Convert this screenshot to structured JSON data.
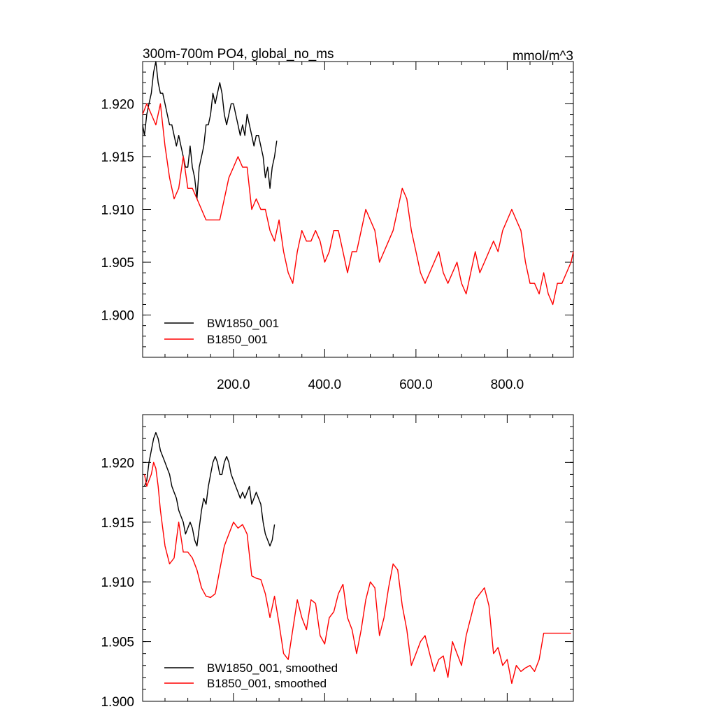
{
  "title_left": "300m-700m PO4, global_no_ms",
  "title_right": "mmol/m^3",
  "chart_data": [
    {
      "type": "line",
      "title": "300m-700m PO4, global_no_ms",
      "units": "mmol/m^3",
      "xlim": [
        1,
        945
      ],
      "ylim": [
        1.896,
        1.924
      ],
      "x_tick_values": [
        200,
        400,
        600,
        800
      ],
      "x_tick_labels": [
        "200.0",
        "400.0",
        "600.0",
        "800.0"
      ],
      "y_tick_values": [
        1.9,
        1.905,
        1.91,
        1.915,
        1.92
      ],
      "y_tick_labels": [
        "1.900",
        "1.905",
        "1.910",
        "1.915",
        "1.920"
      ],
      "legend_position": "bottom-left",
      "series": [
        {
          "name": "BW1850_001",
          "color": "#000000",
          "x": [
            1,
            5,
            10,
            15,
            20,
            25,
            30,
            35,
            40,
            45,
            50,
            55,
            60,
            65,
            70,
            75,
            80,
            85,
            90,
            95,
            100,
            105,
            110,
            115,
            120,
            125,
            130,
            135,
            140,
            145,
            150,
            155,
            160,
            165,
            170,
            175,
            180,
            185,
            190,
            195,
            200,
            205,
            210,
            215,
            220,
            225,
            230,
            235,
            240,
            245,
            250,
            255,
            260,
            265,
            270,
            275,
            280,
            285,
            290,
            295
          ],
          "values": [
            1.918,
            1.917,
            1.919,
            1.92,
            1.921,
            1.923,
            1.924,
            1.922,
            1.921,
            1.921,
            1.92,
            1.919,
            1.918,
            1.918,
            1.917,
            1.916,
            1.917,
            1.916,
            1.915,
            1.914,
            1.914,
            1.916,
            1.914,
            1.913,
            1.911,
            1.914,
            1.915,
            1.916,
            1.918,
            1.918,
            1.919,
            1.921,
            1.92,
            1.921,
            1.922,
            1.921,
            1.919,
            1.918,
            1.919,
            1.92,
            1.92,
            1.919,
            1.918,
            1.917,
            1.918,
            1.917,
            1.919,
            1.918,
            1.917,
            1.916,
            1.917,
            1.917,
            1.916,
            1.915,
            1.913,
            1.914,
            1.912,
            1.914,
            1.915,
            1.9165
          ]
        },
        {
          "name": "B1850_001",
          "color": "#ff0000",
          "x": [
            1,
            10,
            20,
            30,
            40,
            50,
            60,
            70,
            80,
            90,
            100,
            110,
            120,
            130,
            140,
            150,
            160,
            170,
            180,
            190,
            200,
            210,
            220,
            230,
            240,
            250,
            260,
            270,
            280,
            290,
            300,
            310,
            320,
            330,
            340,
            350,
            360,
            370,
            380,
            390,
            400,
            410,
            420,
            430,
            440,
            450,
            460,
            470,
            480,
            490,
            500,
            510,
            520,
            530,
            540,
            550,
            560,
            570,
            580,
            590,
            600,
            610,
            620,
            630,
            640,
            650,
            660,
            670,
            680,
            690,
            700,
            710,
            720,
            730,
            740,
            750,
            760,
            770,
            780,
            790,
            800,
            810,
            820,
            830,
            840,
            850,
            860,
            870,
            880,
            890,
            900,
            910,
            920,
            930,
            940,
            945
          ],
          "values": [
            1.919,
            1.92,
            1.919,
            1.918,
            1.92,
            1.916,
            1.913,
            1.911,
            1.912,
            1.915,
            1.912,
            1.912,
            1.911,
            1.91,
            1.909,
            1.909,
            1.909,
            1.909,
            1.911,
            1.913,
            1.914,
            1.915,
            1.914,
            1.914,
            1.91,
            1.911,
            1.91,
            1.91,
            1.908,
            1.907,
            1.909,
            1.906,
            1.904,
            1.903,
            1.906,
            1.908,
            1.907,
            1.907,
            1.908,
            1.907,
            1.905,
            1.906,
            1.908,
            1.908,
            1.906,
            1.904,
            1.906,
            1.906,
            1.908,
            1.91,
            1.909,
            1.908,
            1.905,
            1.906,
            1.907,
            1.908,
            1.91,
            1.912,
            1.911,
            1.908,
            1.906,
            1.904,
            1.903,
            1.904,
            1.905,
            1.906,
            1.904,
            1.903,
            1.904,
            1.905,
            1.903,
            1.902,
            1.904,
            1.906,
            1.904,
            1.905,
            1.906,
            1.907,
            1.906,
            1.908,
            1.909,
            1.91,
            1.909,
            1.908,
            1.905,
            1.903,
            1.903,
            1.902,
            1.904,
            1.902,
            1.901,
            1.903,
            1.903,
            1.904,
            1.905,
            1.906
          ]
        }
      ]
    },
    {
      "type": "line",
      "xlim": [
        1,
        945
      ],
      "ylim": [
        1.9,
        1.924
      ],
      "x_tick_values": [
        200,
        400,
        600,
        800
      ],
      "x_tick_labels": [],
      "y_tick_values": [
        1.9,
        1.905,
        1.91,
        1.915,
        1.92
      ],
      "y_tick_labels": [
        "1.900",
        "1.905",
        "1.910",
        "1.915",
        "1.920"
      ],
      "legend_position": "bottom-left",
      "series": [
        {
          "name": "BW1850_001, smoothed",
          "color": "#000000",
          "x": [
            5,
            10,
            15,
            20,
            25,
            30,
            35,
            40,
            45,
            50,
            55,
            60,
            65,
            70,
            75,
            80,
            85,
            90,
            95,
            100,
            105,
            110,
            115,
            120,
            125,
            130,
            135,
            140,
            145,
            150,
            155,
            160,
            165,
            170,
            175,
            180,
            185,
            190,
            195,
            200,
            205,
            210,
            215,
            220,
            225,
            230,
            235,
            240,
            245,
            250,
            255,
            260,
            265,
            270,
            275,
            280,
            285,
            290
          ],
          "values": [
            1.918,
            1.9185,
            1.92,
            1.921,
            1.922,
            1.9225,
            1.922,
            1.921,
            1.9205,
            1.92,
            1.9195,
            1.919,
            1.918,
            1.9175,
            1.917,
            1.916,
            1.9155,
            1.915,
            1.914,
            1.9145,
            1.915,
            1.9145,
            1.9135,
            1.913,
            1.9145,
            1.916,
            1.917,
            1.9165,
            1.918,
            1.919,
            1.92,
            1.9205,
            1.92,
            1.919,
            1.919,
            1.92,
            1.9205,
            1.92,
            1.919,
            1.9185,
            1.918,
            1.9175,
            1.917,
            1.9175,
            1.917,
            1.9175,
            1.918,
            1.9165,
            1.917,
            1.9175,
            1.917,
            1.9165,
            1.915,
            1.914,
            1.9135,
            1.913,
            1.9135,
            1.9148
          ]
        },
        {
          "name": "B1850_001, smoothed",
          "color": "#ff0000",
          "x": [
            5,
            10,
            15,
            20,
            25,
            30,
            35,
            40,
            50,
            60,
            70,
            80,
            90,
            100,
            110,
            120,
            130,
            140,
            150,
            160,
            170,
            180,
            190,
            200,
            210,
            220,
            230,
            240,
            250,
            260,
            270,
            280,
            290,
            300,
            310,
            320,
            330,
            340,
            350,
            360,
            370,
            380,
            390,
            400,
            410,
            420,
            430,
            440,
            450,
            460,
            470,
            480,
            490,
            500,
            510,
            520,
            530,
            540,
            550,
            560,
            570,
            580,
            590,
            600,
            610,
            620,
            630,
            640,
            650,
            660,
            670,
            680,
            690,
            700,
            710,
            720,
            730,
            740,
            750,
            760,
            770,
            780,
            790,
            800,
            810,
            820,
            830,
            840,
            850,
            860,
            870,
            880,
            890,
            900,
            910,
            920,
            930,
            940
          ],
          "values": [
            1.919,
            1.918,
            1.9185,
            1.919,
            1.92,
            1.9195,
            1.918,
            1.916,
            1.913,
            1.9115,
            1.912,
            1.915,
            1.9125,
            1.9125,
            1.912,
            1.911,
            1.9095,
            1.9088,
            1.9087,
            1.909,
            1.911,
            1.913,
            1.914,
            1.915,
            1.9145,
            1.9148,
            1.914,
            1.9105,
            1.9103,
            1.9102,
            1.909,
            1.907,
            1.9088,
            1.9065,
            1.904,
            1.9035,
            1.906,
            1.9085,
            1.907,
            1.906,
            1.9085,
            1.9082,
            1.9055,
            1.9048,
            1.907,
            1.9075,
            1.909,
            1.9098,
            1.907,
            1.906,
            1.904,
            1.906,
            1.9085,
            1.91,
            1.9095,
            1.9055,
            1.907,
            1.9095,
            1.9115,
            1.911,
            1.908,
            1.906,
            1.903,
            1.904,
            1.905,
            1.9055,
            1.904,
            1.9025,
            1.9035,
            1.9038,
            1.902,
            1.905,
            1.904,
            1.903,
            1.9055,
            1.907,
            1.9085,
            1.909,
            1.9095,
            1.908,
            1.904,
            1.9045,
            1.903,
            1.9035,
            1.9015,
            1.903,
            1.9025,
            1.9028,
            1.903,
            1.9025,
            1.9035,
            1.9057,
            1.9057,
            1.9057,
            1.9057,
            1.9057,
            1.9057,
            1.9057
          ]
        }
      ]
    }
  ]
}
